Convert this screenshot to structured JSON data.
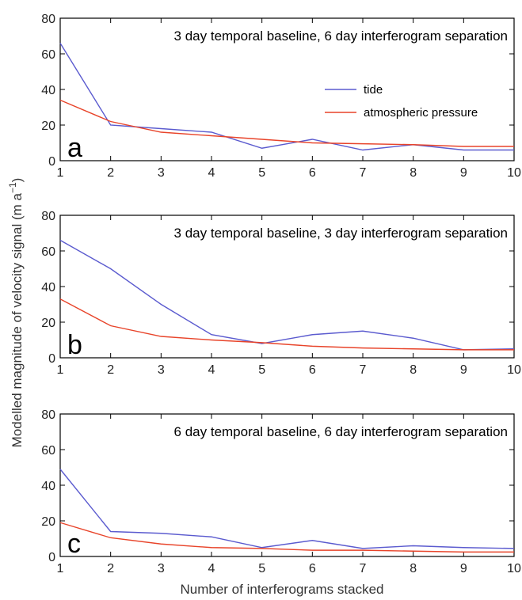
{
  "chart_data": [
    {
      "type": "line",
      "panel_label": "a",
      "title": "3 day temporal baseline, 6 day interferogram separation",
      "x": [
        1,
        2,
        3,
        4,
        5,
        6,
        7,
        8,
        9,
        10
      ],
      "xlim": [
        1,
        10
      ],
      "ylim": [
        0,
        80
      ],
      "yticks": [
        0,
        20,
        40,
        60,
        80
      ],
      "legend": "right",
      "series": [
        {
          "name": "tide",
          "color": "#5b5bcf",
          "values": [
            66,
            20,
            18,
            16,
            7,
            12,
            6,
            9,
            6,
            6
          ]
        },
        {
          "name": "atmospheric pressure",
          "color": "#e8442a",
          "values": [
            34,
            22,
            16,
            14,
            12,
            10,
            9.5,
            9,
            8,
            8
          ]
        }
      ]
    },
    {
      "type": "line",
      "panel_label": "b",
      "title": "3 day temporal baseline, 3 day interferogram separation",
      "x": [
        1,
        2,
        3,
        4,
        5,
        6,
        7,
        8,
        9,
        10
      ],
      "xlim": [
        1,
        10
      ],
      "ylim": [
        0,
        80
      ],
      "yticks": [
        0,
        20,
        40,
        60,
        80
      ],
      "series": [
        {
          "name": "tide",
          "color": "#5b5bcf",
          "values": [
            66,
            50,
            30,
            13,
            8,
            13,
            15,
            11,
            4.5,
            5
          ]
        },
        {
          "name": "atmospheric pressure",
          "color": "#e8442a",
          "values": [
            33,
            18,
            12,
            10,
            8.5,
            6.5,
            5.5,
            5,
            4.5,
            4.5
          ]
        }
      ]
    },
    {
      "type": "line",
      "panel_label": "c",
      "title": "6 day temporal baseline, 6 day interferogram separation",
      "x": [
        1,
        2,
        3,
        4,
        5,
        6,
        7,
        8,
        9,
        10
      ],
      "xlim": [
        1,
        10
      ],
      "ylim": [
        0,
        80
      ],
      "yticks": [
        0,
        20,
        40,
        60,
        80
      ],
      "series": [
        {
          "name": "tide",
          "color": "#5b5bcf",
          "values": [
            49,
            14,
            13,
            11,
            5,
            9,
            4.5,
            6,
            5,
            4.5
          ]
        },
        {
          "name": "atmospheric pressure",
          "color": "#e8442a",
          "values": [
            19,
            10.5,
            7,
            5,
            4.5,
            3.5,
            3.5,
            3,
            2.5,
            2.5
          ]
        }
      ]
    }
  ],
  "axes": {
    "ylabel_main": "Modelled magnitude of velocity signal (m a",
    "ylabel_sup": "−1",
    "ylabel_close": ")",
    "xlabel": "Number of interferograms stacked"
  }
}
